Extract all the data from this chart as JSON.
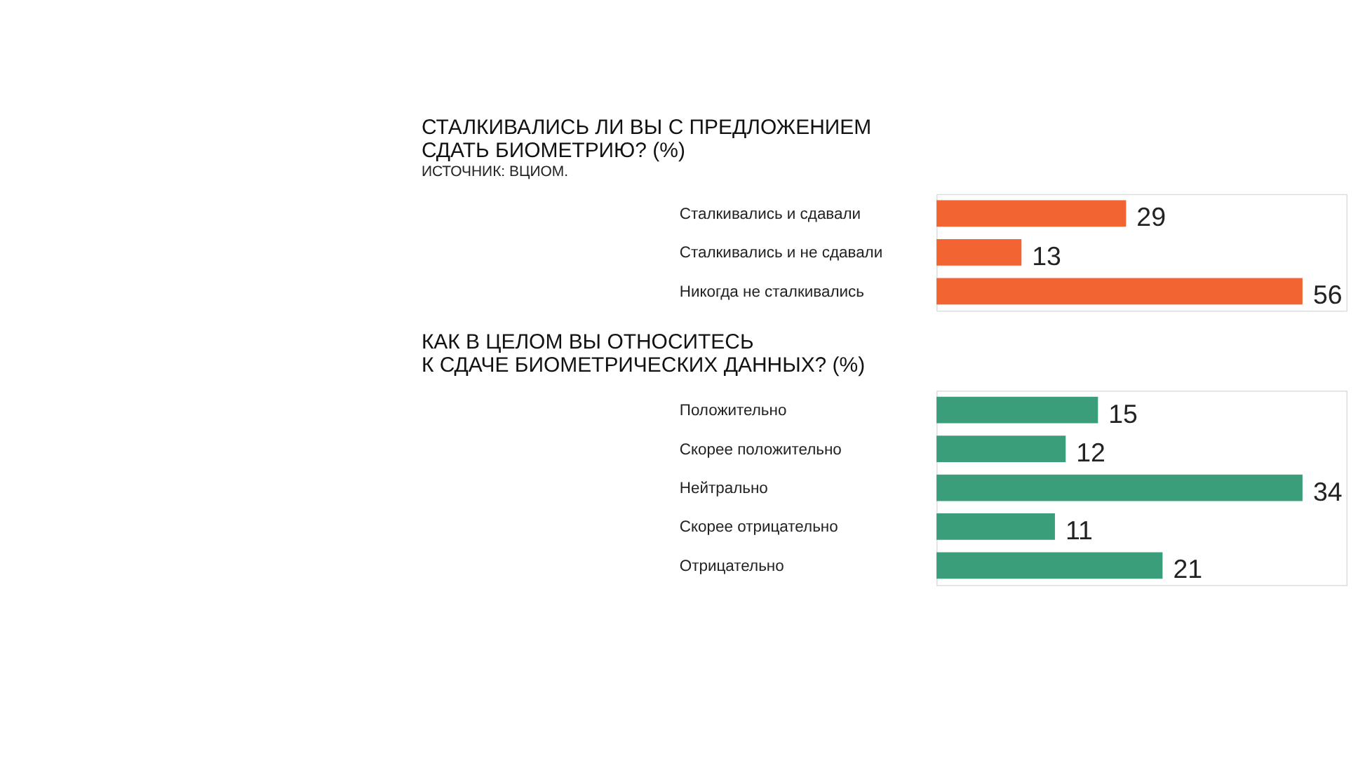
{
  "chart_data": [
    {
      "type": "bar",
      "orientation": "horizontal",
      "title": "СТАЛКИВАЛИСЬ ЛИ ВЫ С ПРЕДЛОЖЕНИЕМ\nСДАТЬ БИОМЕТРИЮ? (%)",
      "annotations": [
        "ИСТОЧНИК: ВЦИОМ."
      ],
      "categories": [
        "Сталкивались и сдавали",
        "Сталкивались и не сдавали",
        "Никогда не сталкивались"
      ],
      "values": [
        29,
        13,
        56
      ],
      "color": "#f26532",
      "data_labels": true,
      "tick_labels": "y",
      "grid": false,
      "legend": false
    },
    {
      "type": "bar",
      "orientation": "horizontal",
      "title": "КАК В ЦЕЛОМ ВЫ ОТНОСИТЕСЬ\nК СДАЧЕ БИОМЕТРИЧЕСКИХ ДАННЫХ? (%)",
      "categories": [
        "Положительно",
        "Скорее положительно",
        "Нейтрально",
        "Скорее отрицательно",
        "Отрицательно"
      ],
      "values": [
        15,
        12,
        34,
        11,
        21
      ],
      "color": "#3a9e7a",
      "data_labels": true,
      "tick_labels": "y",
      "grid": false,
      "legend": false
    }
  ]
}
